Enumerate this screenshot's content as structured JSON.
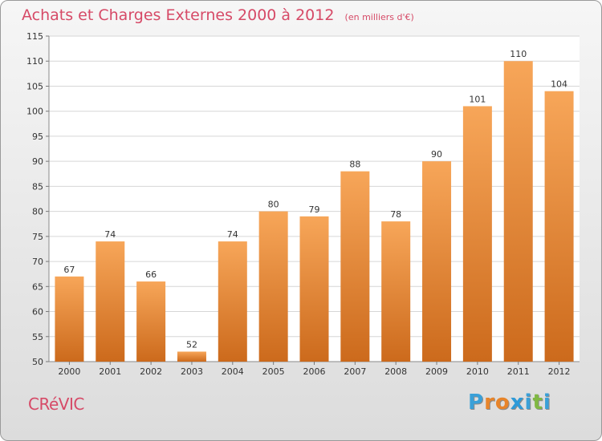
{
  "header": {
    "title": "Achats et Charges Externes 2000 à 2012",
    "unit": "(en milliers d'€)"
  },
  "footer": {
    "commune": "CRéVIC",
    "logo": [
      "P",
      "r",
      "o",
      "x",
      "i",
      "t",
      "i"
    ]
  },
  "colors": {
    "accent": "#d64a67",
    "bar_top": "#f7a659",
    "bar_bottom": "#cc6a1c",
    "logo_letters": [
      "#3aa0d8",
      "#e7842a",
      "#e7842a",
      "#2e9ad8",
      "#3aa0d8",
      "#80b843",
      "#3aa0d8"
    ]
  },
  "chart_data": {
    "type": "bar",
    "title": "Achats et Charges Externes 2000 à 2012",
    "subtitle": "(en milliers d'€)",
    "xlabel": "",
    "ylabel": "",
    "categories": [
      "2000",
      "2001",
      "2002",
      "2003",
      "2004",
      "2005",
      "2006",
      "2007",
      "2008",
      "2009",
      "2010",
      "2011",
      "2012"
    ],
    "values": [
      67,
      74,
      66,
      52,
      74,
      80,
      79,
      88,
      78,
      90,
      101,
      110,
      104
    ],
    "ylim": [
      50,
      115
    ],
    "yticks": [
      50,
      55,
      60,
      65,
      70,
      75,
      80,
      85,
      90,
      95,
      100,
      105,
      110,
      115
    ],
    "grid": true,
    "legend": "none"
  }
}
